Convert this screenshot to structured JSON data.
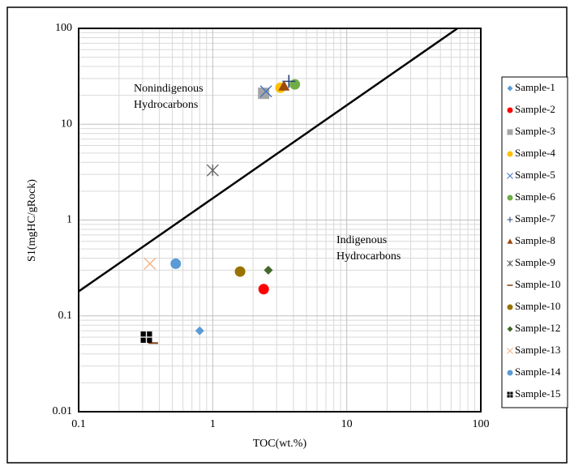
{
  "chart_data": {
    "type": "scatter",
    "x_label": "TOC(wt.%)",
    "y_label": "S1(mgHC/gRock)",
    "xlog": true,
    "ylog": true,
    "xlim": [
      0.1,
      100
    ],
    "ylim": [
      0.01,
      100
    ],
    "xticks": [
      0.1,
      1,
      10,
      100
    ],
    "yticks": [
      0.01,
      0.1,
      1,
      10,
      100
    ],
    "grid": true,
    "minor_grid": true,
    "legend": "right",
    "boundary_line": {
      "color": "#000000",
      "x": [
        0.1,
        67
      ],
      "y": [
        0.18,
        100
      ]
    },
    "annotations": [
      {
        "lines": [
          "Nonindigenous",
          "Hydrocarbons"
        ]
      },
      {
        "lines": [
          "Indigenous",
          "Hydrocarbons"
        ]
      }
    ],
    "series": [
      {
        "name": "Sample-1",
        "color": "#5b9bd5",
        "marker": "diamond",
        "x": [
          0.8
        ],
        "values": [
          0.07
        ]
      },
      {
        "name": "Sample-2",
        "color": "#ff0000",
        "marker": "circle",
        "x": [
          2.4
        ],
        "values": [
          0.19
        ]
      },
      {
        "name": "Sample-3",
        "color": "#a5a5a5",
        "marker": "square",
        "x": [
          2.4
        ],
        "values": [
          21
        ]
      },
      {
        "name": "Sample-4",
        "color": "#ffc000",
        "marker": "circle",
        "x": [
          3.2
        ],
        "values": [
          24
        ]
      },
      {
        "name": "Sample-5",
        "color": "#4472c4",
        "marker": "x",
        "x": [
          2.5
        ],
        "values": [
          22
        ]
      },
      {
        "name": "Sample-6",
        "color": "#70ad47",
        "marker": "circle",
        "x": [
          4.1
        ],
        "values": [
          26
        ]
      },
      {
        "name": "Sample-7",
        "color": "#264478",
        "marker": "plus",
        "x": [
          3.7
        ],
        "values": [
          28
        ]
      },
      {
        "name": "Sample-8",
        "color": "#9e480e",
        "marker": "triangle",
        "x": [
          3.4
        ],
        "values": [
          25
        ]
      },
      {
        "name": "Sample-9",
        "color": "#636363",
        "marker": "asterisk",
        "x": [
          1.0
        ],
        "values": [
          3.3
        ]
      },
      {
        "name": "Sample-10",
        "color": "#843c0c",
        "marker": "dash",
        "x": [
          0.36
        ],
        "values": [
          0.052
        ]
      },
      {
        "name": "Sample-10",
        "color": "#997300",
        "marker": "circle",
        "x": [
          1.6
        ],
        "values": [
          0.29
        ]
      },
      {
        "name": "Sample-12",
        "color": "#43682b",
        "marker": "diamond",
        "x": [
          2.6
        ],
        "values": [
          0.3
        ]
      },
      {
        "name": "Sample-13",
        "color": "#f4b183",
        "marker": "x",
        "x": [
          0.34
        ],
        "values": [
          0.35
        ]
      },
      {
        "name": "Sample-14",
        "color": "#5b9bd5",
        "marker": "circle",
        "x": [
          0.53
        ],
        "values": [
          0.35
        ]
      },
      {
        "name": "Sample-15",
        "color": "#000000",
        "marker": "squares",
        "x": [
          0.32
        ],
        "values": [
          0.06
        ]
      }
    ]
  }
}
